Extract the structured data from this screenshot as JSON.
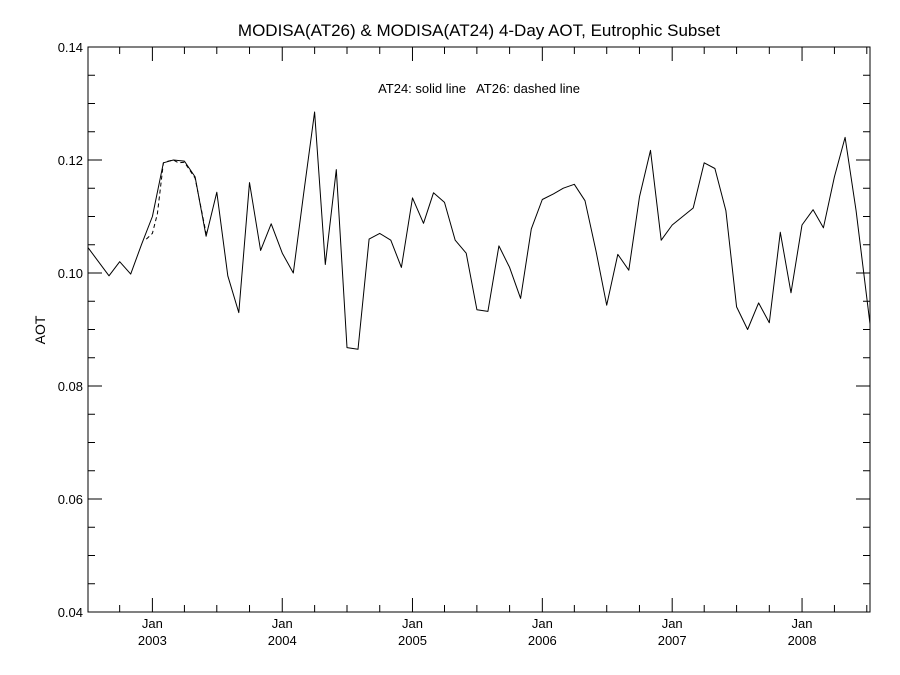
{
  "chart_data": {
    "type": "line",
    "title": "MODISA(AT26) & MODISA(AT24) 4-Day AOT, Eutrophic Subset",
    "ylabel": "AOT",
    "xlabel": "",
    "annotation": "AT24: solid line   AT26: dashed line",
    "ylim": [
      0.04,
      0.14
    ],
    "xlim": [
      "2002-07-04",
      "2008-07-10"
    ],
    "y_ticks": [
      "0.04",
      "0.06",
      "0.08",
      "0.10",
      "0.12",
      "0.14"
    ],
    "x_ticks": [
      {
        "date": "2003-01-01",
        "month": "Jan",
        "year": "2003"
      },
      {
        "date": "2004-01-01",
        "month": "Jan",
        "year": "2004"
      },
      {
        "date": "2005-01-01",
        "month": "Jan",
        "year": "2005"
      },
      {
        "date": "2006-01-01",
        "month": "Jan",
        "year": "2006"
      },
      {
        "date": "2007-01-01",
        "month": "Jan",
        "year": "2007"
      },
      {
        "date": "2008-01-01",
        "month": "Jan",
        "year": "2008"
      }
    ],
    "grid": false,
    "series": [
      {
        "name": "AT24",
        "style": "solid",
        "x": [
          "2002-07-04",
          "2002-09-01",
          "2002-10-01",
          "2002-11-01",
          "2002-12-01",
          "2003-01-01",
          "2003-02-01",
          "2003-03-01",
          "2003-04-01",
          "2003-05-01",
          "2003-06-01",
          "2003-07-01",
          "2003-08-01",
          "2003-09-01",
          "2003-10-01",
          "2003-11-01",
          "2003-12-01",
          "2004-01-01",
          "2004-02-01",
          "2004-03-01",
          "2004-04-01",
          "2004-05-01",
          "2004-06-01",
          "2004-07-01",
          "2004-08-01",
          "2004-09-01",
          "2004-10-01",
          "2004-11-01",
          "2004-12-01",
          "2005-01-01",
          "2005-02-01",
          "2005-03-01",
          "2005-04-01",
          "2005-05-01",
          "2005-06-01",
          "2005-07-01",
          "2005-08-01",
          "2005-09-01",
          "2005-10-01",
          "2005-11-01",
          "2005-12-01",
          "2006-01-01",
          "2006-02-01",
          "2006-03-01",
          "2006-04-01",
          "2006-05-01",
          "2006-06-01",
          "2006-07-01",
          "2006-08-01",
          "2006-09-01",
          "2006-10-01",
          "2006-11-01",
          "2006-12-01",
          "2007-01-01",
          "2007-03-01",
          "2007-04-01",
          "2007-05-01",
          "2007-06-01",
          "2007-07-01",
          "2007-08-01",
          "2007-09-01",
          "2007-10-01",
          "2007-11-01",
          "2007-12-01",
          "2008-01-01",
          "2008-02-01",
          "2008-03-01",
          "2008-04-01",
          "2008-05-01",
          "2008-06-01",
          "2008-07-10"
        ],
        "values": [
          0.1045,
          0.0995,
          0.102,
          0.0998,
          0.105,
          0.11,
          0.1195,
          0.12,
          0.1198,
          0.117,
          0.1065,
          0.1143,
          0.0995,
          0.093,
          0.116,
          0.104,
          0.1087,
          0.1035,
          0.1,
          0.114,
          0.1285,
          0.1015,
          0.1183,
          0.0868,
          0.0865,
          0.106,
          0.107,
          0.1058,
          0.101,
          0.1133,
          0.1088,
          0.1142,
          0.1125,
          0.1058,
          0.1035,
          0.0935,
          0.0932,
          0.1048,
          0.101,
          0.0955,
          0.1078,
          0.113,
          0.114,
          0.115,
          0.1157,
          0.1128,
          0.1038,
          0.0943,
          0.1033,
          0.1005,
          0.1135,
          0.1217,
          0.1058,
          0.1085,
          0.1115,
          0.1195,
          0.1185,
          0.111,
          0.094,
          0.09,
          0.0947,
          0.0912,
          0.1072,
          0.0965,
          0.1085,
          0.1112,
          0.108,
          0.117,
          0.124,
          0.111,
          0.091
        ]
      },
      {
        "name": "AT26",
        "style": "dashed",
        "x": [
          "2002-12-15",
          "2003-01-01",
          "2003-01-15",
          "2003-02-01",
          "2003-02-15",
          "2003-03-01",
          "2003-03-15",
          "2003-04-01",
          "2003-05-01",
          "2003-06-01"
        ],
        "values": [
          0.106,
          0.107,
          0.1105,
          0.1195,
          0.1198,
          0.12,
          0.1195,
          0.1196,
          0.1168,
          0.107
        ]
      }
    ]
  }
}
